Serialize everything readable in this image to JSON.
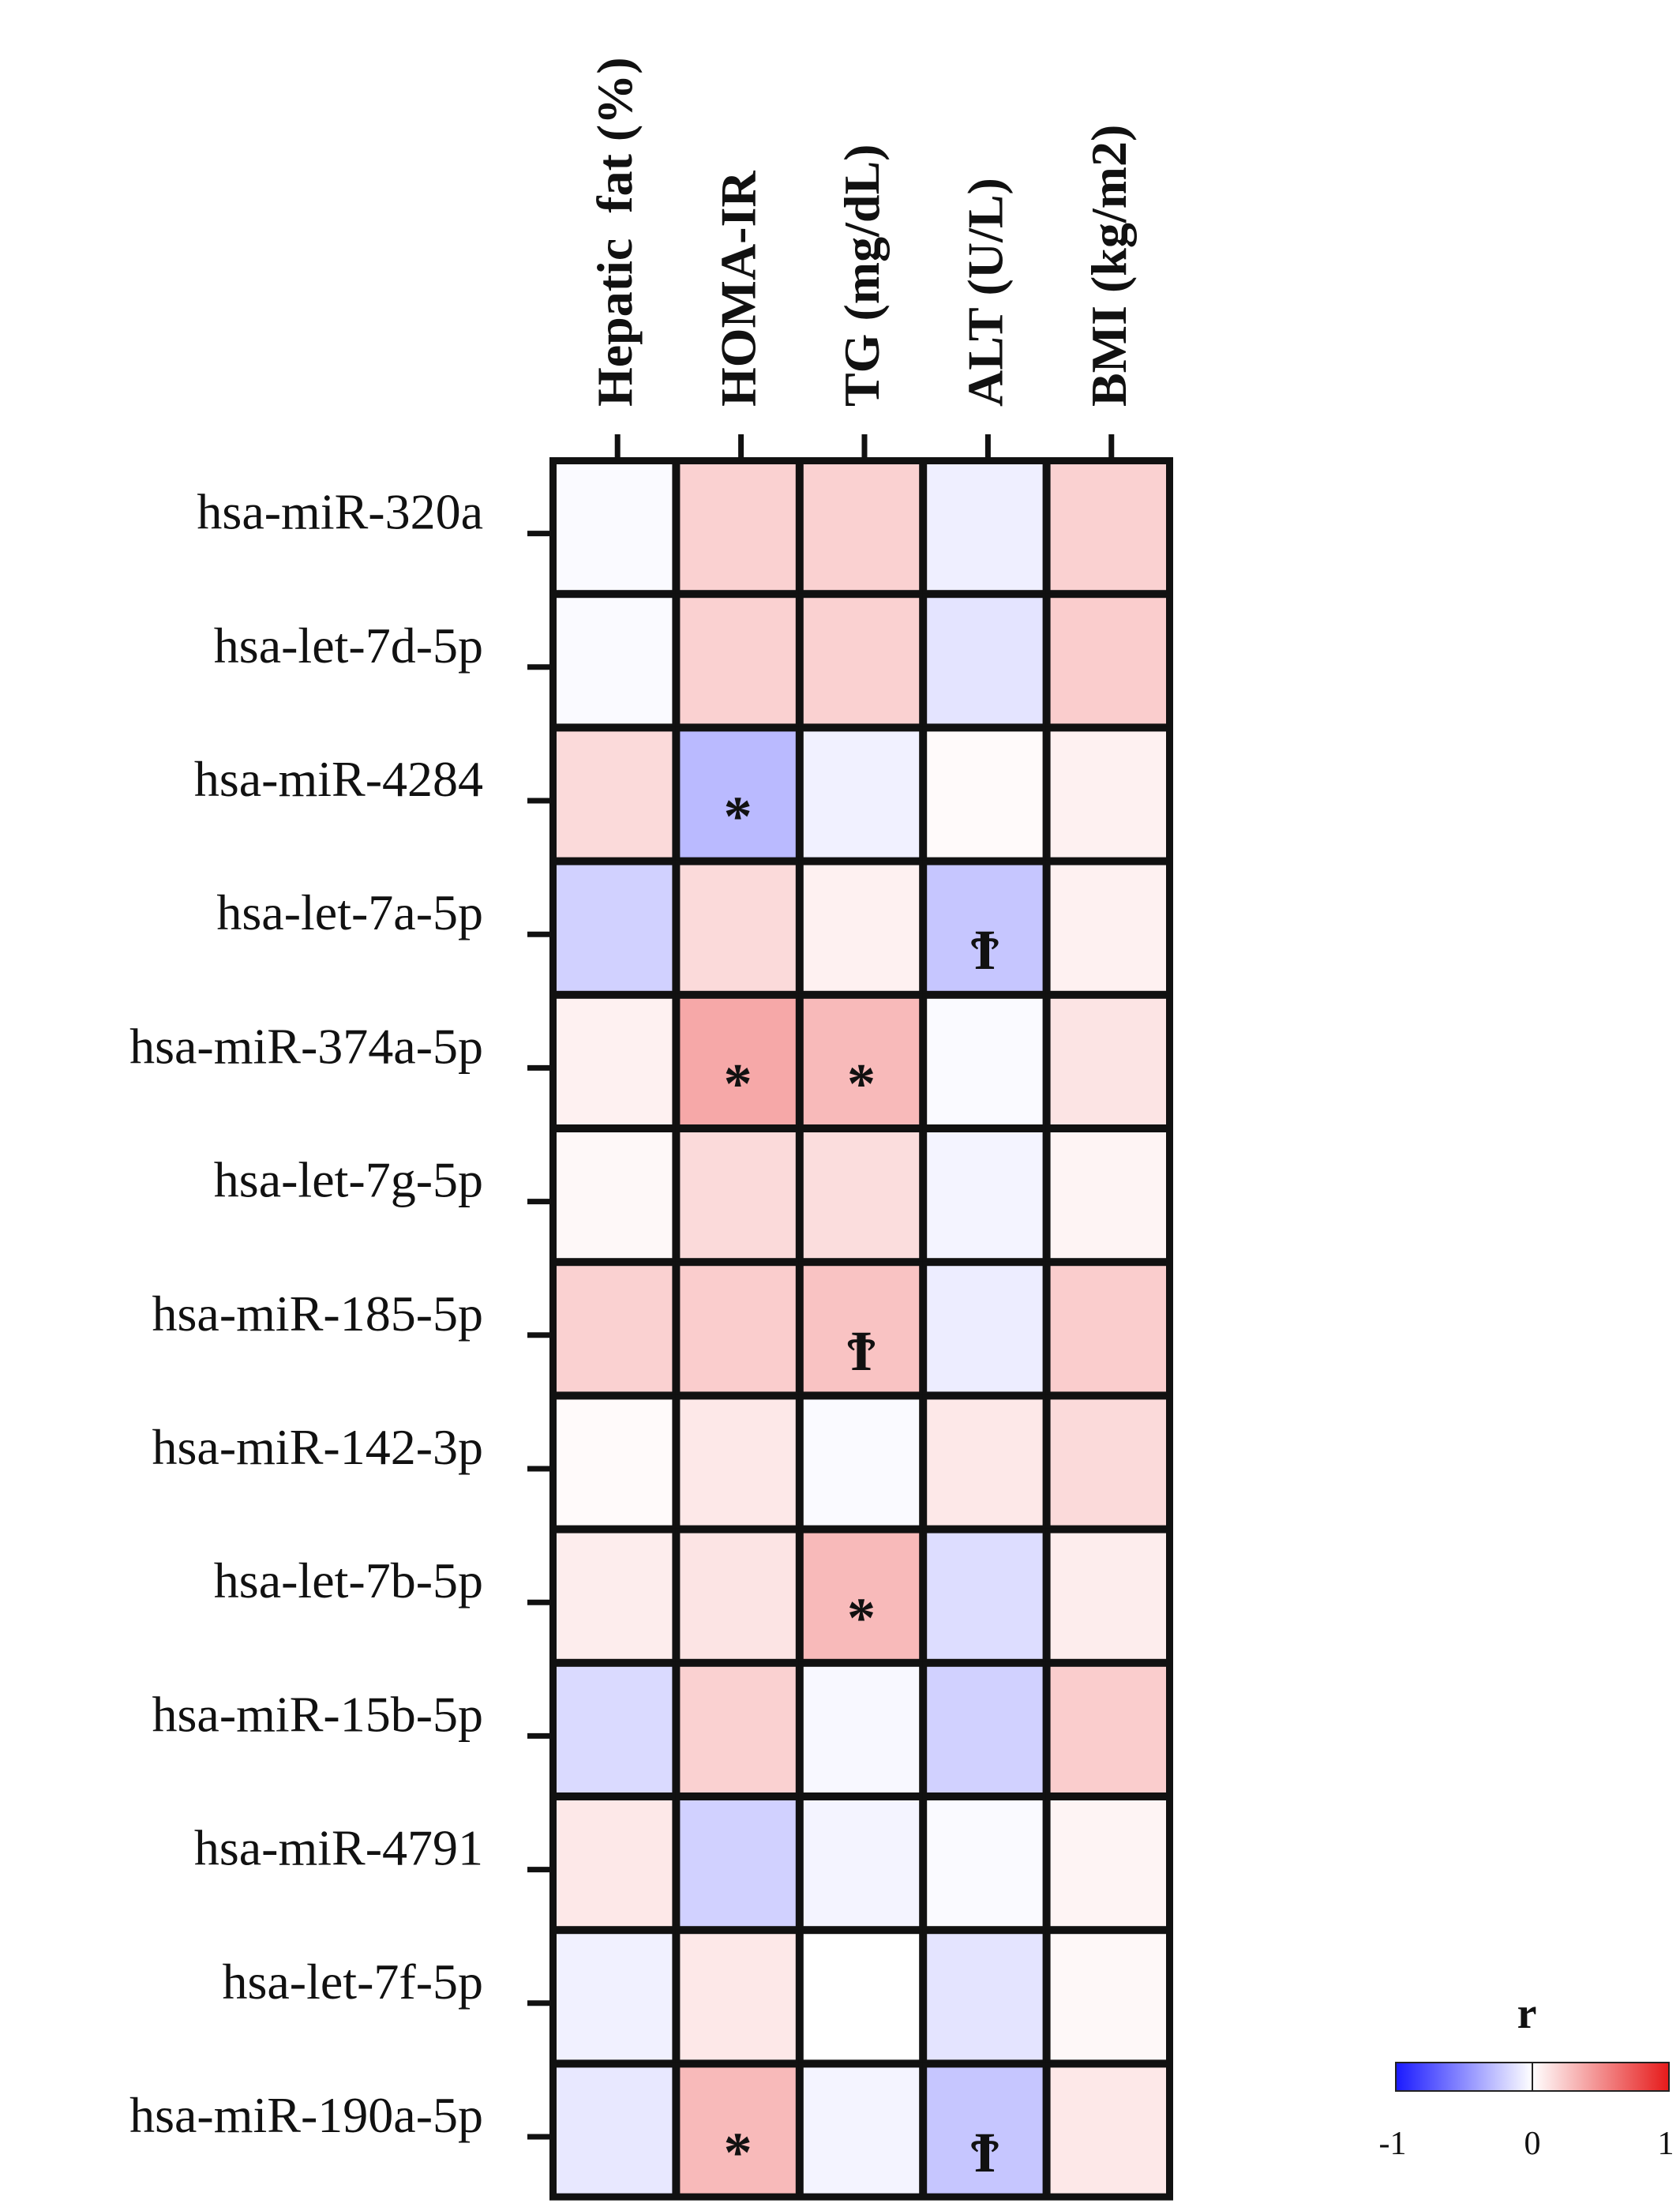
{
  "chart_data": {
    "type": "heatmap",
    "columns": [
      "Hepatic  fat (%)",
      "HOMA-IR",
      "TG (mg/dL)",
      "ALT (U/L)",
      "BMI (kg/m2)"
    ],
    "rows": [
      "hsa-miR-320a",
      "hsa-let-7d-5p",
      "hsa-miR-4284",
      "hsa-let-7a-5p",
      "hsa-miR-374a-5p",
      "hsa-let-7g-5p",
      "hsa-miR-185-5p",
      "hsa-miR-142-3p",
      "hsa-let-7b-5p",
      "hsa-miR-15b-5p",
      "hsa-miR-4791",
      "hsa-let-7f-5p",
      "hsa-miR-190a-5p"
    ],
    "values": [
      [
        -0.02,
        0.2,
        0.2,
        -0.07,
        0.2
      ],
      [
        -0.02,
        0.2,
        0.2,
        -0.12,
        0.22
      ],
      [
        0.16,
        -0.3,
        -0.06,
        0.02,
        0.06
      ],
      [
        -0.2,
        0.16,
        0.06,
        -0.25,
        0.06
      ],
      [
        0.06,
        0.38,
        0.3,
        -0.02,
        0.12
      ],
      [
        0.03,
        0.16,
        0.15,
        -0.05,
        0.05
      ],
      [
        0.2,
        0.22,
        0.26,
        -0.08,
        0.22
      ],
      [
        0.02,
        0.1,
        -0.02,
        0.1,
        0.16
      ],
      [
        0.08,
        0.12,
        0.3,
        -0.15,
        0.08
      ],
      [
        -0.16,
        0.2,
        -0.03,
        -0.2,
        0.22
      ],
      [
        0.1,
        -0.2,
        -0.05,
        -0.02,
        0.05
      ],
      [
        -0.06,
        0.1,
        0.0,
        -0.12,
        0.03
      ],
      [
        -0.1,
        0.3,
        -0.05,
        -0.25,
        0.1
      ]
    ],
    "significance": [
      [
        "",
        "",
        "",
        "",
        ""
      ],
      [
        "",
        "",
        "",
        "",
        ""
      ],
      [
        "",
        "*",
        "",
        "",
        ""
      ],
      [
        "",
        "",
        "",
        "Ϯ",
        ""
      ],
      [
        "",
        "*",
        "*",
        "",
        ""
      ],
      [
        "",
        "",
        "",
        "",
        ""
      ],
      [
        "",
        "",
        "Ϯ",
        "",
        ""
      ],
      [
        "",
        "",
        "",
        "",
        ""
      ],
      [
        "",
        "",
        "*",
        "",
        ""
      ],
      [
        "",
        "",
        "",
        "",
        ""
      ],
      [
        "",
        "",
        "",
        "",
        ""
      ],
      [
        "",
        "",
        "",
        "",
        ""
      ],
      [
        "",
        "*",
        "",
        "Ϯ",
        ""
      ]
    ],
    "color_scale": {
      "title": "r",
      "range": [
        -1,
        1
      ],
      "ticks": [
        "-1",
        "0",
        "1"
      ],
      "low_color": "#1a1aff",
      "mid_color": "#ffffff",
      "high_color": "#e61a1a"
    },
    "legend_position": "bottom-right"
  }
}
